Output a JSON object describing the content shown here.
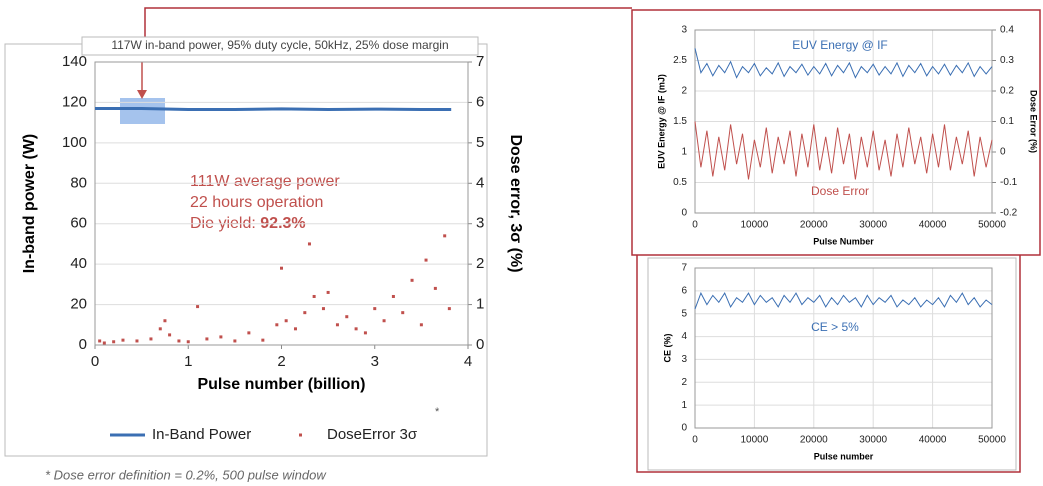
{
  "chart_data": [
    {
      "type": "line",
      "title": "117W in-band power, 95% duty cycle, 50kHz, 25% dose margin",
      "xlabel": "Pulse number (billion)",
      "ylabel": "In-band power (W)",
      "y2label": "Dose error, 3σ (%)",
      "annotations": [
        "111W average power",
        "22 hours operation"
      ],
      "yield_label": "Die yield:",
      "yield_value": "92.3%",
      "note_mark": "*",
      "footnote": "* Dose error definition = 0.2%, 500 pulse window",
      "xlim": [
        0,
        4
      ],
      "xticks": [
        0,
        1,
        2,
        3,
        4
      ],
      "ylim": [
        0,
        140
      ],
      "yticks": [
        0,
        20,
        40,
        60,
        80,
        100,
        120,
        140
      ],
      "y2lim": [
        0,
        7
      ],
      "y2ticks": [
        0,
        1,
        2,
        3,
        4,
        5,
        6,
        7
      ],
      "grid": "y",
      "legend": "bottom",
      "series": [
        {
          "name": "In-Band Power",
          "color": "#3b6fb3",
          "mode": "line",
          "x": [
            0,
            0.5,
            1,
            1.5,
            2,
            2.5,
            3,
            3.5,
            3.82
          ],
          "values": [
            117,
            117,
            116.5,
            116.5,
            116.8,
            116.5,
            116.7,
            116.5,
            116.5
          ]
        },
        {
          "name": "DoseError 3σ",
          "color": "#c0504d",
          "mode": "markers",
          "axis": "y2",
          "x": [
            0.05,
            0.1,
            0.2,
            0.3,
            0.45,
            0.6,
            0.7,
            0.75,
            0.8,
            0.9,
            1.0,
            1.1,
            1.2,
            1.35,
            1.5,
            1.65,
            1.8,
            1.95,
            2.0,
            2.05,
            2.15,
            2.25,
            2.3,
            2.35,
            2.45,
            2.5,
            2.6,
            2.7,
            2.8,
            2.9,
            3.0,
            3.1,
            3.2,
            3.3,
            3.4,
            3.5,
            3.55,
            3.65,
            3.75,
            3.8
          ],
          "values": [
            0.1,
            0.05,
            0.08,
            0.12,
            0.1,
            0.15,
            0.4,
            0.6,
            0.25,
            0.1,
            0.08,
            0.95,
            0.15,
            0.2,
            0.1,
            0.3,
            0.12,
            0.5,
            1.9,
            0.6,
            0.4,
            0.8,
            2.5,
            1.2,
            0.9,
            1.3,
            0.5,
            0.7,
            0.4,
            0.3,
            0.9,
            0.6,
            1.2,
            0.8,
            1.6,
            0.5,
            2.1,
            1.4,
            2.7,
            0.9
          ]
        }
      ]
    },
    {
      "type": "line",
      "xlabel": "Pulse Number",
      "ylabel": "EUV Energy @ IF (mJ)",
      "y2label": "Dose Error (%)",
      "annotations": [
        "EUV Energy @ IF",
        "Dose Error"
      ],
      "xlim": [
        0,
        50000
      ],
      "xticks": [
        0,
        10000,
        20000,
        30000,
        40000,
        50000
      ],
      "ylim": [
        0,
        3
      ],
      "yticks": [
        0,
        0.5,
        1,
        1.5,
        2,
        2.5,
        3
      ],
      "y2lim": [
        -0.2,
        0.4
      ],
      "y2ticks": [
        -0.2,
        -0.1,
        0,
        0.1,
        0.2,
        0.3,
        0.4
      ],
      "grid": "both",
      "x": [
        0,
        1000,
        2000,
        3000,
        4000,
        5000,
        6000,
        7000,
        8000,
        9000,
        10000,
        11000,
        12000,
        13000,
        14000,
        15000,
        16000,
        17000,
        18000,
        19000,
        20000,
        21000,
        22000,
        23000,
        24000,
        25000,
        26000,
        27000,
        28000,
        29000,
        30000,
        31000,
        32000,
        33000,
        34000,
        35000,
        36000,
        37000,
        38000,
        39000,
        40000,
        41000,
        42000,
        43000,
        44000,
        45000,
        46000,
        47000,
        48000,
        49000,
        50000
      ],
      "series": [
        {
          "color": "#3b6fb3",
          "mode": "line",
          "values": [
            2.7,
            2.3,
            2.45,
            2.25,
            2.42,
            2.3,
            2.48,
            2.22,
            2.4,
            2.3,
            2.45,
            2.25,
            2.38,
            2.28,
            2.46,
            2.24,
            2.4,
            2.3,
            2.44,
            2.26,
            2.4,
            2.28,
            2.45,
            2.25,
            2.42,
            2.3,
            2.46,
            2.22,
            2.4,
            2.3,
            2.44,
            2.26,
            2.4,
            2.28,
            2.46,
            2.24,
            2.42,
            2.3,
            2.45,
            2.25,
            2.4,
            2.28,
            2.44,
            2.26,
            2.42,
            2.3,
            2.46,
            2.24,
            2.4,
            2.28,
            2.4
          ]
        },
        {
          "color": "#c0504d",
          "mode": "line",
          "axis": "y2",
          "values": [
            0.1,
            -0.05,
            0.07,
            -0.08,
            0.05,
            -0.06,
            0.09,
            -0.04,
            0.06,
            -0.09,
            0.04,
            -0.05,
            0.08,
            -0.07,
            0.05,
            -0.04,
            0.07,
            -0.08,
            0.06,
            -0.05,
            0.09,
            -0.06,
            0.05,
            -0.07,
            0.08,
            -0.04,
            0.06,
            -0.09,
            0.05,
            -0.05,
            0.07,
            -0.06,
            0.04,
            -0.08,
            0.06,
            -0.05,
            0.08,
            -0.04,
            0.05,
            -0.07,
            0.06,
            -0.05,
            0.09,
            -0.06,
            0.05,
            -0.04,
            0.07,
            -0.08,
            0.05,
            -0.05,
            0.04
          ]
        }
      ]
    },
    {
      "type": "line",
      "xlabel": "Pulse number",
      "ylabel": "CE (%)",
      "annotations": [
        "CE > 5%"
      ],
      "xlim": [
        0,
        50000
      ],
      "xticks": [
        0,
        10000,
        20000,
        30000,
        40000,
        50000
      ],
      "ylim": [
        0,
        7
      ],
      "yticks": [
        0,
        1,
        2,
        3,
        4,
        5,
        6,
        7
      ],
      "grid": "both",
      "x": [
        0,
        1000,
        2000,
        3000,
        4000,
        5000,
        6000,
        7000,
        8000,
        9000,
        10000,
        11000,
        12000,
        13000,
        14000,
        15000,
        16000,
        17000,
        18000,
        19000,
        20000,
        21000,
        22000,
        23000,
        24000,
        25000,
        26000,
        27000,
        28000,
        29000,
        30000,
        31000,
        32000,
        33000,
        34000,
        35000,
        36000,
        37000,
        38000,
        39000,
        40000,
        41000,
        42000,
        43000,
        44000,
        45000,
        46000,
        47000,
        48000,
        49000,
        50000
      ],
      "series": [
        {
          "color": "#3b6fb3",
          "mode": "line",
          "values": [
            5.2,
            5.9,
            5.4,
            5.8,
            5.5,
            5.9,
            5.3,
            5.7,
            5.5,
            5.9,
            5.4,
            5.8,
            5.5,
            5.7,
            5.3,
            5.8,
            5.5,
            5.9,
            5.4,
            5.7,
            5.5,
            5.8,
            5.3,
            5.7,
            5.4,
            5.8,
            5.5,
            5.7,
            5.3,
            5.8,
            5.4,
            5.7,
            5.5,
            5.8,
            5.3,
            5.6,
            5.4,
            5.7,
            5.3,
            5.6,
            5.4,
            5.7,
            5.3,
            5.8,
            5.5,
            5.9,
            5.4,
            5.7,
            5.3,
            5.6,
            5.4
          ]
        }
      ]
    }
  ]
}
